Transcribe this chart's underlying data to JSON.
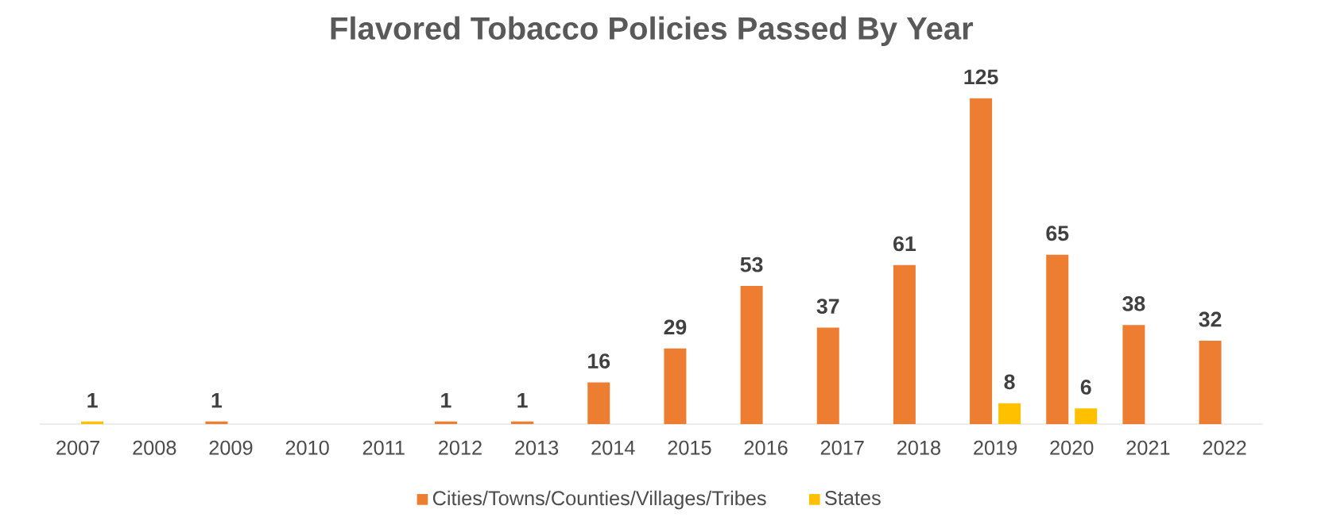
{
  "chart_data": {
    "type": "bar",
    "title": "Flavored Tobacco Policies Passed By Year",
    "categories": [
      "2007",
      "2008",
      "2009",
      "2010",
      "2011",
      "2012",
      "2013",
      "2014",
      "2015",
      "2016",
      "2017",
      "2018",
      "2019",
      "2020",
      "2021",
      "2022"
    ],
    "series": [
      {
        "name": "Cities/Towns/Counties/Villages/Tribes",
        "color": "#ed7d31",
        "values": [
          null,
          null,
          1,
          null,
          null,
          1,
          1,
          16,
          29,
          53,
          37,
          61,
          125,
          65,
          38,
          32
        ]
      },
      {
        "name": "States",
        "color": "#ffc000",
        "values": [
          1,
          null,
          null,
          null,
          null,
          null,
          null,
          null,
          null,
          null,
          null,
          null,
          8,
          6,
          null,
          null
        ]
      }
    ],
    "data_labels": true,
    "legend": "bottom",
    "tick_labels": "x"
  }
}
